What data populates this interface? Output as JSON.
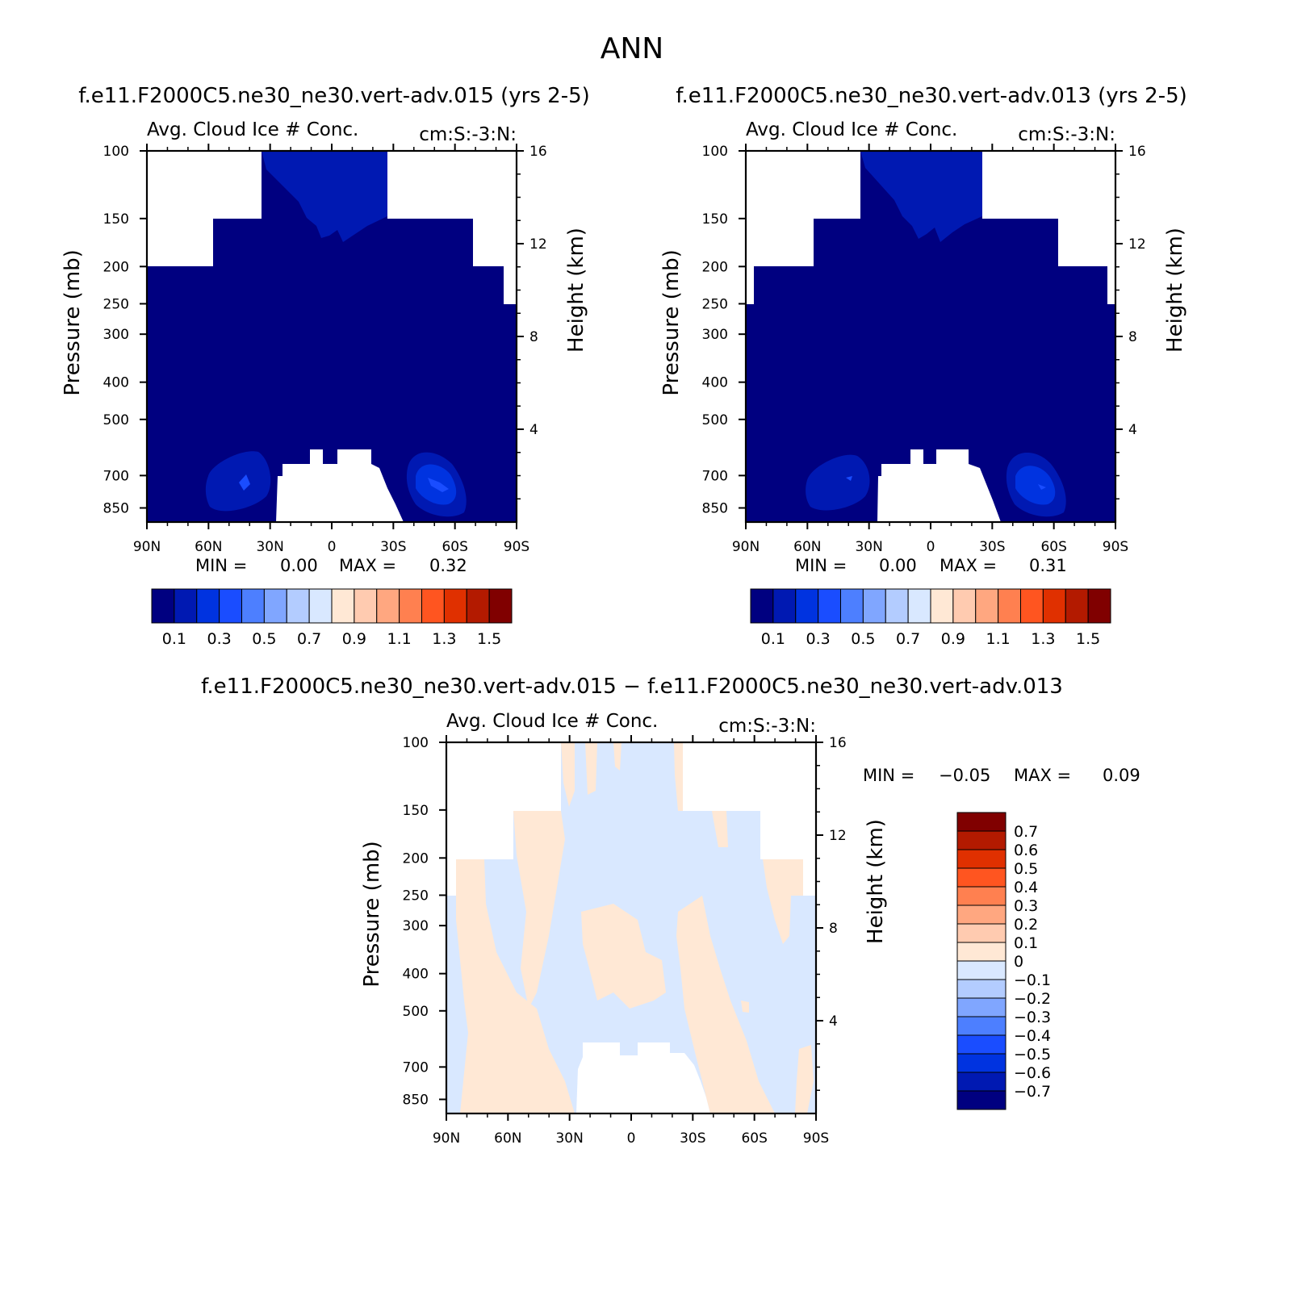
{
  "figure": {
    "season": "ANN"
  },
  "chart_data": [
    {
      "type": "heatmap",
      "id": "panel_test",
      "case_title": "f.e11.F2000C5.ne30_ne30.vert-adv.015 (yrs 2-5)",
      "title": "Avg. Cloud Ice # Conc.",
      "units": "cm:S:-3:N:",
      "xlabel": "",
      "ylabel": "Pressure (mb)",
      "y2label": "Height (km)",
      "x_ticks": [
        "90N",
        "60N",
        "30N",
        "0",
        "30S",
        "60S",
        "90S"
      ],
      "y_ticks": [
        100,
        150,
        200,
        250,
        300,
        400,
        500,
        700,
        850
      ],
      "y2_ticks": [
        16,
        12,
        8,
        4
      ],
      "min_label": "MIN =",
      "min": "0.00",
      "max_label": "MAX =",
      "max": "0.32",
      "colorbar": {
        "labels": [
          "0.1",
          "0.3",
          "0.5",
          "0.7",
          "0.9",
          "1.1",
          "1.3",
          "1.5"
        ],
        "colors": [
          "#000080",
          "#0019b2",
          "#0033e0",
          "#1a4dff",
          "#4d7fff",
          "#80a6ff",
          "#b3ccff",
          "#d9e8ff",
          "#ffe8d5",
          "#ffcbb0",
          "#ffa780",
          "#ff8050",
          "#ff5520",
          "#e03000",
          "#b31a00",
          "#800000"
        ]
      }
    },
    {
      "type": "heatmap",
      "id": "panel_control",
      "case_title": "f.e11.F2000C5.ne30_ne30.vert-adv.013 (yrs 2-5)",
      "title": "Avg. Cloud Ice # Conc.",
      "units": "cm:S:-3:N:",
      "xlabel": "",
      "ylabel": "Pressure (mb)",
      "y2label": "Height (km)",
      "x_ticks": [
        "90N",
        "60N",
        "30N",
        "0",
        "30S",
        "60S",
        "90S"
      ],
      "y_ticks": [
        100,
        150,
        200,
        250,
        300,
        400,
        500,
        700,
        850
      ],
      "y2_ticks": [
        16,
        12,
        8,
        4
      ],
      "min_label": "MIN =",
      "min": "0.00",
      "max_label": "MAX =",
      "max": "0.31",
      "colorbar": {
        "labels": [
          "0.1",
          "0.3",
          "0.5",
          "0.7",
          "0.9",
          "1.1",
          "1.3",
          "1.5"
        ],
        "colors": [
          "#000080",
          "#0019b2",
          "#0033e0",
          "#1a4dff",
          "#4d7fff",
          "#80a6ff",
          "#b3ccff",
          "#d9e8ff",
          "#ffe8d5",
          "#ffcbb0",
          "#ffa780",
          "#ff8050",
          "#ff5520",
          "#e03000",
          "#b31a00",
          "#800000"
        ]
      }
    },
    {
      "type": "heatmap",
      "id": "panel_diff",
      "case_title": "f.e11.F2000C5.ne30_ne30.vert-adv.015 − f.e11.F2000C5.ne30_ne30.vert-adv.013",
      "title": "Avg. Cloud Ice # Conc.",
      "units": "cm:S:-3:N:",
      "xlabel": "",
      "ylabel": "Pressure (mb)",
      "y2label": "Height (km)",
      "x_ticks": [
        "90N",
        "60N",
        "30N",
        "0",
        "30S",
        "60S",
        "90S"
      ],
      "y_ticks": [
        100,
        150,
        200,
        250,
        300,
        400,
        500,
        700,
        850
      ],
      "y2_ticks": [
        16,
        12,
        8,
        4
      ],
      "min_label": "MIN =",
      "min": "−0.05",
      "max_label": "MAX =",
      "max": "0.09",
      "colorbar": {
        "labels": [
          "0.7",
          "0.6",
          "0.5",
          "0.4",
          "0.3",
          "0.2",
          "0.1",
          "0",
          "−0.1",
          "−0.2",
          "−0.3",
          "−0.4",
          "−0.5",
          "−0.6",
          "−0.7"
        ],
        "colors": [
          "#800000",
          "#b31a00",
          "#e03000",
          "#ff5520",
          "#ff8050",
          "#ffa780",
          "#ffcbb0",
          "#ffe8d5",
          "#d9e8ff",
          "#b3ccff",
          "#80a6ff",
          "#4d7fff",
          "#1a4dff",
          "#0033e0",
          "#0019b2",
          "#000080"
        ]
      }
    }
  ]
}
